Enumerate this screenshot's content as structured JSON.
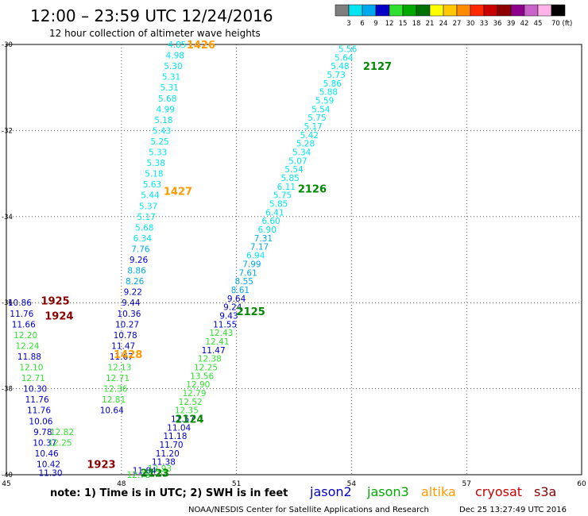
{
  "header": {
    "title": "12:00 – 23:59 UTC 12/24/2016",
    "subtitle": "12 hour collection of altimeter wave heights"
  },
  "colorbar": {
    "labels": [
      "3",
      "6",
      "9",
      "12",
      "15",
      "18",
      "21",
      "24",
      "27",
      "30",
      "33",
      "36",
      "39",
      "42",
      "45",
      "70 (ft)"
    ],
    "colors": [
      "#7f7f7f",
      "#00e5f0",
      "#00a8ee",
      "#0000c8",
      "#30e030",
      "#00a800",
      "#007000",
      "#ffff00",
      "#ffc800",
      "#ff8c00",
      "#ff2800",
      "#c80000",
      "#8c0000",
      "#8c008c",
      "#c864c8",
      "#ffb4e6",
      "#000000"
    ]
  },
  "footer": {
    "note": "note:  1) Time is in UTC;  2) SWH is in feet",
    "credit": "NOAA/NESDIS Center for Satellite Applications and Research",
    "timestamp": "Dec 25 13:27:49 UTC 2016",
    "legend": [
      {
        "name": "jason2",
        "color": "#0000cc"
      },
      {
        "name": "jason3",
        "color": "#00aa00"
      },
      {
        "name": "altika",
        "color": "#ff9900"
      },
      {
        "name": "cryosat",
        "color": "#cc0000"
      },
      {
        "name": "s3a",
        "color": "#880000"
      }
    ]
  },
  "chart_data": {
    "type": "scatter",
    "x_ticks": [
      "45",
      "48",
      "51",
      "54",
      "57",
      "60"
    ],
    "y_ticks": [
      "-30",
      "-32",
      "-34",
      "-36",
      "-38",
      "-40"
    ],
    "xlim": [
      45,
      60
    ],
    "ylim": [
      -40,
      -30
    ],
    "grid": true,
    "tracks": [
      {
        "label": "1426",
        "color": "#ff9900",
        "lon": 49.7,
        "lat": -30.0
      },
      {
        "label": "1427",
        "color": "#ff9900",
        "lon": 49.1,
        "lat": -33.4
      },
      {
        "label": "1428",
        "color": "#ff9900",
        "lon": 47.8,
        "lat": -37.2
      },
      {
        "label": "1923",
        "color": "#880000",
        "lon": 47.1,
        "lat": -39.75
      },
      {
        "label": "1924",
        "color": "#880000",
        "lon": 46.0,
        "lat": -36.3
      },
      {
        "label": "1925",
        "color": "#880000",
        "lon": 45.9,
        "lat": -35.95
      },
      {
        "label": "2123",
        "color": "#008800",
        "lon": 48.5,
        "lat": -39.95
      },
      {
        "label": "2124",
        "color": "#008800",
        "lon": 49.4,
        "lat": -38.7
      },
      {
        "label": "2125",
        "color": "#008800",
        "lon": 51.0,
        "lat": -36.2
      },
      {
        "label": "2126",
        "color": "#008800",
        "lon": 52.6,
        "lat": -33.35
      },
      {
        "label": "2127",
        "color": "#008800",
        "lon": 54.3,
        "lat": -30.5
      }
    ],
    "points": [
      {
        "lon": 49.45,
        "lat": -30.0,
        "v": "4.85",
        "c": "#00e5f0"
      },
      {
        "lon": 49.4,
        "lat": -30.25,
        "v": "4.98",
        "c": "#00e5f0"
      },
      {
        "lon": 49.35,
        "lat": -30.5,
        "v": "5.30",
        "c": "#00e5f0"
      },
      {
        "lon": 49.3,
        "lat": -30.75,
        "v": "5.31",
        "c": "#00e5f0"
      },
      {
        "lon": 49.25,
        "lat": -31.0,
        "v": "5.31",
        "c": "#00e5f0"
      },
      {
        "lon": 49.2,
        "lat": -31.25,
        "v": "5.68",
        "c": "#00e5f0"
      },
      {
        "lon": 49.15,
        "lat": -31.5,
        "v": "4.99",
        "c": "#00e5f0"
      },
      {
        "lon": 49.1,
        "lat": -31.75,
        "v": "5.18",
        "c": "#00e5f0"
      },
      {
        "lon": 49.05,
        "lat": -32.0,
        "v": "5.43",
        "c": "#00e5f0"
      },
      {
        "lon": 49.0,
        "lat": -32.25,
        "v": "5.25",
        "c": "#00e5f0"
      },
      {
        "lon": 48.95,
        "lat": -32.5,
        "v": "5.33",
        "c": "#00e5f0"
      },
      {
        "lon": 48.9,
        "lat": -32.75,
        "v": "5.38",
        "c": "#00e5f0"
      },
      {
        "lon": 48.85,
        "lat": -33.0,
        "v": "5.18",
        "c": "#00e5f0"
      },
      {
        "lon": 48.8,
        "lat": -33.25,
        "v": "5.63",
        "c": "#00e5f0"
      },
      {
        "lon": 48.75,
        "lat": -33.5,
        "v": "5.44",
        "c": "#00e5f0"
      },
      {
        "lon": 48.7,
        "lat": -33.75,
        "v": "5.37",
        "c": "#00e5f0"
      },
      {
        "lon": 48.65,
        "lat": -34.0,
        "v": "5.17",
        "c": "#00e5f0"
      },
      {
        "lon": 48.6,
        "lat": -34.25,
        "v": "5.68",
        "c": "#00e5f0"
      },
      {
        "lon": 48.55,
        "lat": -34.5,
        "v": "6.34",
        "c": "#00e5f0"
      },
      {
        "lon": 48.5,
        "lat": -34.75,
        "v": "7.76",
        "c": "#00a8ee"
      },
      {
        "lon": 48.45,
        "lat": -35.0,
        "v": "9.26",
        "c": "#0000c8"
      },
      {
        "lon": 48.4,
        "lat": -35.25,
        "v": "8.86",
        "c": "#00a8ee"
      },
      {
        "lon": 48.35,
        "lat": -35.5,
        "v": "8.26",
        "c": "#00a8ee"
      },
      {
        "lon": 48.3,
        "lat": -35.75,
        "v": "9.22",
        "c": "#0000c8"
      },
      {
        "lon": 48.25,
        "lat": -36.0,
        "v": "9.44",
        "c": "#0000c8"
      },
      {
        "lon": 48.2,
        "lat": -36.25,
        "v": "10.36",
        "c": "#0000c8"
      },
      {
        "lon": 48.15,
        "lat": -36.5,
        "v": "10.27",
        "c": "#0000c8"
      },
      {
        "lon": 48.1,
        "lat": -36.75,
        "v": "10.78",
        "c": "#0000c8"
      },
      {
        "lon": 48.05,
        "lat": -37.0,
        "v": "11.47",
        "c": "#0000c8"
      },
      {
        "lon": 48.0,
        "lat": -37.25,
        "v": "11.67",
        "c": "#0000c8"
      },
      {
        "lon": 47.95,
        "lat": -37.5,
        "v": "12.13",
        "c": "#30e030"
      },
      {
        "lon": 47.9,
        "lat": -37.75,
        "v": "12.71",
        "c": "#30e030"
      },
      {
        "lon": 47.85,
        "lat": -38.0,
        "v": "12.36",
        "c": "#30e030"
      },
      {
        "lon": 47.8,
        "lat": -38.25,
        "v": "12.81",
        "c": "#30e030"
      },
      {
        "lon": 47.75,
        "lat": -38.5,
        "v": "10.64",
        "c": "#0000c8"
      },
      {
        "lon": 45.35,
        "lat": -36.0,
        "v": "10.86",
        "c": "#0000c8"
      },
      {
        "lon": 45.4,
        "lat": -36.25,
        "v": "11.76",
        "c": "#0000c8"
      },
      {
        "lon": 45.45,
        "lat": -36.5,
        "v": "11.66",
        "c": "#0000c8"
      },
      {
        "lon": 45.5,
        "lat": -36.75,
        "v": "12.20",
        "c": "#30e030"
      },
      {
        "lon": 45.55,
        "lat": -37.0,
        "v": "12.24",
        "c": "#30e030"
      },
      {
        "lon": 45.6,
        "lat": -37.25,
        "v": "11.88",
        "c": "#0000c8"
      },
      {
        "lon": 45.65,
        "lat": -37.5,
        "v": "12.10",
        "c": "#30e030"
      },
      {
        "lon": 45.7,
        "lat": -37.75,
        "v": "12.71",
        "c": "#30e030"
      },
      {
        "lon": 45.75,
        "lat": -38.0,
        "v": "10.30",
        "c": "#0000c8"
      },
      {
        "lon": 45.8,
        "lat": -38.25,
        "v": "11.76",
        "c": "#0000c8"
      },
      {
        "lon": 45.85,
        "lat": -38.5,
        "v": "11.76",
        "c": "#0000c8"
      },
      {
        "lon": 45.9,
        "lat": -38.75,
        "v": "10.06",
        "c": "#0000c8"
      },
      {
        "lon": 45.95,
        "lat": -39.0,
        "v": "9.78",
        "c": "#0000c8"
      },
      {
        "lon": 46.0,
        "lat": -39.25,
        "v": "10.37",
        "c": "#0000c8"
      },
      {
        "lon": 46.05,
        "lat": -39.5,
        "v": "10.46",
        "c": "#0000c8"
      },
      {
        "lon": 46.1,
        "lat": -39.75,
        "v": "10.42",
        "c": "#0000c8"
      },
      {
        "lon": 46.15,
        "lat": -39.95,
        "v": "11.30",
        "c": "#0000c8"
      },
      {
        "lon": 46.45,
        "lat": -39.0,
        "v": "12.82",
        "c": "#30e030"
      },
      {
        "lon": 46.4,
        "lat": -39.25,
        "v": "12.25",
        "c": "#30e030"
      },
      {
        "lon": 53.9,
        "lat": -30.1,
        "v": "5.56",
        "c": "#00e5f0"
      },
      {
        "lon": 53.8,
        "lat": -30.3,
        "v": "5.64",
        "c": "#00e5f0"
      },
      {
        "lon": 53.7,
        "lat": -30.5,
        "v": "5.48",
        "c": "#00e5f0"
      },
      {
        "lon": 53.6,
        "lat": -30.7,
        "v": "5.73",
        "c": "#00e5f0"
      },
      {
        "lon": 53.5,
        "lat": -30.9,
        "v": "5.86",
        "c": "#00e5f0"
      },
      {
        "lon": 53.4,
        "lat": -31.1,
        "v": "5.88",
        "c": "#00e5f0"
      },
      {
        "lon": 53.3,
        "lat": -31.3,
        "v": "5.59",
        "c": "#00e5f0"
      },
      {
        "lon": 53.2,
        "lat": -31.5,
        "v": "5.54",
        "c": "#00e5f0"
      },
      {
        "lon": 53.1,
        "lat": -31.7,
        "v": "5.75",
        "c": "#00e5f0"
      },
      {
        "lon": 53.0,
        "lat": -31.9,
        "v": "5.17",
        "c": "#00e5f0"
      },
      {
        "lon": 52.9,
        "lat": -32.1,
        "v": "5.42",
        "c": "#00e5f0"
      },
      {
        "lon": 52.8,
        "lat": -32.3,
        "v": "5.28",
        "c": "#00e5f0"
      },
      {
        "lon": 52.7,
        "lat": -32.5,
        "v": "5.34",
        "c": "#00e5f0"
      },
      {
        "lon": 52.6,
        "lat": -32.7,
        "v": "5.07",
        "c": "#00e5f0"
      },
      {
        "lon": 52.5,
        "lat": -32.9,
        "v": "5.54",
        "c": "#00e5f0"
      },
      {
        "lon": 52.4,
        "lat": -33.1,
        "v": "5.85",
        "c": "#00e5f0"
      },
      {
        "lon": 52.3,
        "lat": -33.3,
        "v": "6.11",
        "c": "#00e5f0"
      },
      {
        "lon": 52.2,
        "lat": -33.5,
        "v": "5.75",
        "c": "#00e5f0"
      },
      {
        "lon": 52.1,
        "lat": -33.7,
        "v": "5.85",
        "c": "#00e5f0"
      },
      {
        "lon": 52.0,
        "lat": -33.9,
        "v": "6.41",
        "c": "#00e5f0"
      },
      {
        "lon": 51.9,
        "lat": -34.1,
        "v": "6.60",
        "c": "#00e5f0"
      },
      {
        "lon": 51.8,
        "lat": -34.3,
        "v": "6.90",
        "c": "#00e5f0"
      },
      {
        "lon": 51.7,
        "lat": -34.5,
        "v": "7.31",
        "c": "#00a8ee"
      },
      {
        "lon": 51.6,
        "lat": -34.7,
        "v": "7.17",
        "c": "#00a8ee"
      },
      {
        "lon": 51.5,
        "lat": -34.9,
        "v": "6.94",
        "c": "#00e5f0"
      },
      {
        "lon": 51.4,
        "lat": -35.1,
        "v": "7.99",
        "c": "#00a8ee"
      },
      {
        "lon": 51.3,
        "lat": -35.3,
        "v": "7.61",
        "c": "#00a8ee"
      },
      {
        "lon": 51.2,
        "lat": -35.5,
        "v": "8.55",
        "c": "#00a8ee"
      },
      {
        "lon": 51.1,
        "lat": -35.7,
        "v": "8.61",
        "c": "#00a8ee"
      },
      {
        "lon": 51.0,
        "lat": -35.9,
        "v": "9.64",
        "c": "#0000c8"
      },
      {
        "lon": 50.9,
        "lat": -36.1,
        "v": "9.24",
        "c": "#0000c8"
      },
      {
        "lon": 50.8,
        "lat": -36.3,
        "v": "9.43",
        "c": "#0000c8"
      },
      {
        "lon": 50.7,
        "lat": -36.5,
        "v": "11.55",
        "c": "#0000c8"
      },
      {
        "lon": 50.6,
        "lat": -36.7,
        "v": "12.43",
        "c": "#30e030"
      },
      {
        "lon": 50.5,
        "lat": -36.9,
        "v": "12.41",
        "c": "#30e030"
      },
      {
        "lon": 50.4,
        "lat": -37.1,
        "v": "11.47",
        "c": "#0000c8"
      },
      {
        "lon": 50.3,
        "lat": -37.3,
        "v": "12.38",
        "c": "#30e030"
      },
      {
        "lon": 50.2,
        "lat": -37.5,
        "v": "12.25",
        "c": "#30e030"
      },
      {
        "lon": 50.1,
        "lat": -37.7,
        "v": "13.56",
        "c": "#30e030"
      },
      {
        "lon": 50.0,
        "lat": -37.9,
        "v": "12.90",
        "c": "#30e030"
      },
      {
        "lon": 49.9,
        "lat": -38.1,
        "v": "12.79",
        "c": "#30e030"
      },
      {
        "lon": 49.8,
        "lat": -38.3,
        "v": "12.52",
        "c": "#30e030"
      },
      {
        "lon": 49.7,
        "lat": -38.5,
        "v": "12.35",
        "c": "#30e030"
      },
      {
        "lon": 49.6,
        "lat": -38.7,
        "v": "11.57",
        "c": "#0000c8"
      },
      {
        "lon": 49.5,
        "lat": -38.9,
        "v": "11.04",
        "c": "#0000c8"
      },
      {
        "lon": 49.4,
        "lat": -39.1,
        "v": "11.18",
        "c": "#0000c8"
      },
      {
        "lon": 49.3,
        "lat": -39.3,
        "v": "11.70",
        "c": "#0000c8"
      },
      {
        "lon": 49.2,
        "lat": -39.5,
        "v": "11.20",
        "c": "#0000c8"
      },
      {
        "lon": 49.1,
        "lat": -39.7,
        "v": "11.38",
        "c": "#0000c8"
      },
      {
        "lon": 49.0,
        "lat": -39.85,
        "v": "12.93",
        "c": "#30e030"
      },
      {
        "lon": 48.9,
        "lat": -39.95,
        "v": "12.81",
        "c": "#30e030"
      },
      {
        "lon": 48.6,
        "lat": -39.9,
        "v": "11.84",
        "c": "#0000c8"
      },
      {
        "lon": 48.45,
        "lat": -40.0,
        "v": "12.73",
        "c": "#30e030"
      }
    ]
  }
}
